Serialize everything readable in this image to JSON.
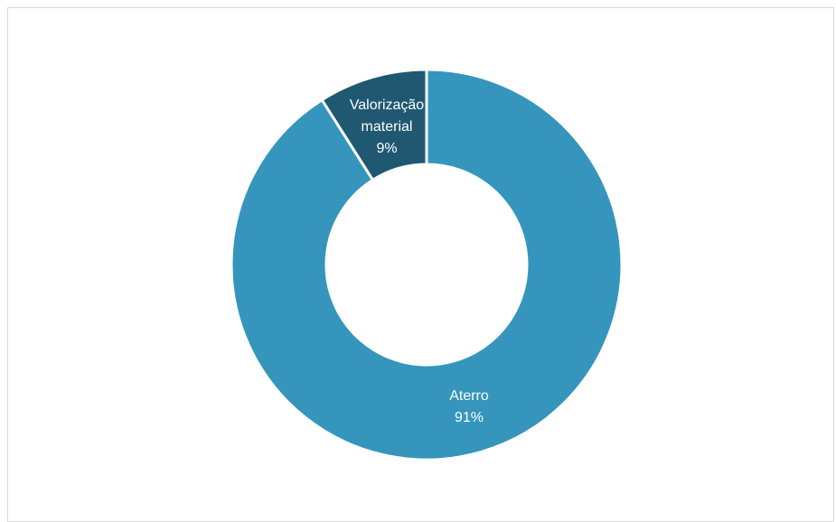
{
  "chart_data": {
    "type": "pie",
    "subtype": "doughnut",
    "categories": [
      "Aterro",
      "Valorização material"
    ],
    "values": [
      91,
      9
    ],
    "unit": "%",
    "colors": [
      "#3595bc",
      "#1f5870"
    ],
    "data_labels": [
      {
        "category_lines": [
          "Aterro"
        ],
        "value_label": "91%"
      },
      {
        "category_lines": [
          "Valorização",
          "material"
        ],
        "value_label": "9%"
      }
    ],
    "legend": "none",
    "start_angle_deg": 0,
    "direction": "clockwise",
    "title": "",
    "slice_border_color": "#ffffff"
  }
}
